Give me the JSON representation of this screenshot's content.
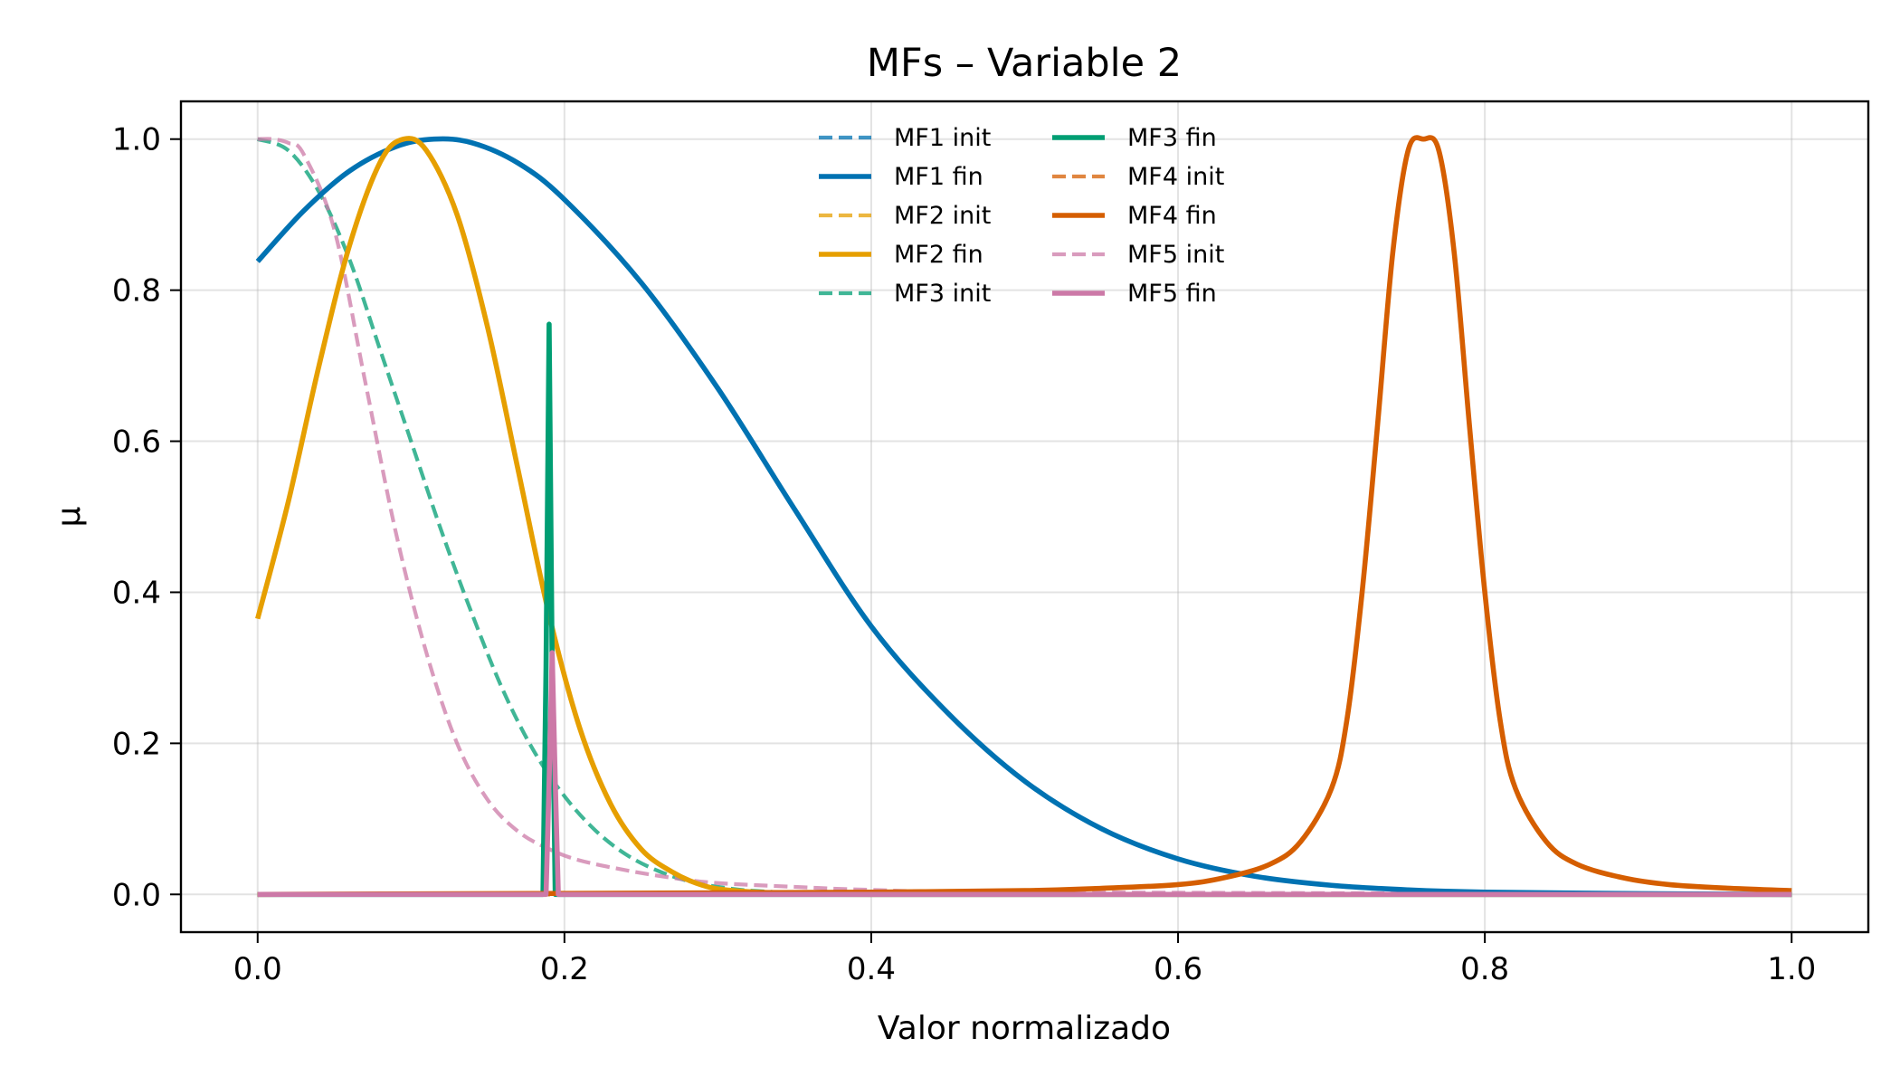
{
  "chart_data": {
    "type": "line",
    "title": "MFs – Variable 2",
    "xlabel": "Valor normalizado",
    "ylabel": "μ",
    "xlim": [
      -0.05,
      1.05
    ],
    "ylim": [
      -0.05,
      1.05
    ],
    "xticks": [
      "0.0",
      "0.2",
      "0.4",
      "0.6",
      "0.8",
      "1.0"
    ],
    "yticks": [
      "0.0",
      "0.2",
      "0.4",
      "0.6",
      "0.8",
      "1.0"
    ],
    "grid": true,
    "legend": {
      "position": "top-center",
      "columns": 2
    },
    "series": [
      {
        "name": "MF1 init",
        "color": "#0072B2",
        "style": "dashed",
        "points": [
          [
            0,
            0
          ],
          [
            1,
            0
          ]
        ]
      },
      {
        "name": "MF1 fin",
        "color": "#0072B2",
        "style": "solid",
        "points": [
          [
            0,
            0.838
          ],
          [
            0.03,
            0.905
          ],
          [
            0.06,
            0.958
          ],
          [
            0.09,
            0.99
          ],
          [
            0.115,
            1.0
          ],
          [
            0.14,
            0.995
          ],
          [
            0.17,
            0.968
          ],
          [
            0.2,
            0.92
          ],
          [
            0.25,
            0.81
          ],
          [
            0.3,
            0.67
          ],
          [
            0.35,
            0.51
          ],
          [
            0.4,
            0.355
          ],
          [
            0.45,
            0.24
          ],
          [
            0.5,
            0.15
          ],
          [
            0.55,
            0.087
          ],
          [
            0.6,
            0.047
          ],
          [
            0.65,
            0.024
          ],
          [
            0.7,
            0.012
          ],
          [
            0.75,
            0.006
          ],
          [
            0.8,
            0.003
          ],
          [
            0.9,
            0.001
          ],
          [
            1.0,
            0.0
          ]
        ]
      },
      {
        "name": "MF2 init",
        "color": "#E69F00",
        "style": "dashed",
        "points": [
          [
            0,
            0
          ],
          [
            1,
            0
          ]
        ]
      },
      {
        "name": "MF2 fin",
        "color": "#E69F00",
        "style": "solid",
        "points": [
          [
            0,
            0.365
          ],
          [
            0.02,
            0.52
          ],
          [
            0.04,
            0.7
          ],
          [
            0.06,
            0.86
          ],
          [
            0.08,
            0.97
          ],
          [
            0.095,
            1.0
          ],
          [
            0.11,
            0.985
          ],
          [
            0.13,
            0.9
          ],
          [
            0.15,
            0.75
          ],
          [
            0.17,
            0.56
          ],
          [
            0.19,
            0.37
          ],
          [
            0.21,
            0.22
          ],
          [
            0.23,
            0.12
          ],
          [
            0.25,
            0.06
          ],
          [
            0.27,
            0.03
          ],
          [
            0.29,
            0.012
          ],
          [
            0.31,
            0.005
          ],
          [
            0.35,
            0.001
          ],
          [
            0.4,
            0.0
          ],
          [
            1.0,
            0.0
          ]
        ]
      },
      {
        "name": "MF3 init",
        "color": "#009E73",
        "style": "dashed",
        "points": [
          [
            0,
            1.0
          ],
          [
            0.02,
            0.985
          ],
          [
            0.04,
            0.93
          ],
          [
            0.06,
            0.84
          ],
          [
            0.08,
            0.72
          ],
          [
            0.1,
            0.6
          ],
          [
            0.12,
            0.48
          ],
          [
            0.14,
            0.37
          ],
          [
            0.16,
            0.27
          ],
          [
            0.18,
            0.19
          ],
          [
            0.2,
            0.13
          ],
          [
            0.22,
            0.085
          ],
          [
            0.24,
            0.053
          ],
          [
            0.26,
            0.032
          ],
          [
            0.28,
            0.018
          ],
          [
            0.3,
            0.01
          ],
          [
            0.33,
            0.004
          ],
          [
            0.4,
            0.001
          ],
          [
            1.0,
            0.0
          ]
        ]
      },
      {
        "name": "MF3 fin",
        "color": "#009E73",
        "style": "solid",
        "points": [
          [
            0,
            0
          ],
          [
            0.186,
            0.0
          ],
          [
            0.188,
            0.3
          ],
          [
            0.19,
            0.755
          ],
          [
            0.192,
            0.3
          ],
          [
            0.194,
            0.0
          ],
          [
            1.0,
            0.0
          ]
        ]
      },
      {
        "name": "MF4 init",
        "color": "#D55E00",
        "style": "dashed",
        "points": [
          [
            0,
            0
          ],
          [
            1,
            0
          ]
        ]
      },
      {
        "name": "MF4 fin",
        "color": "#D55E00",
        "style": "solid",
        "points": [
          [
            0,
            0.0
          ],
          [
            0.3,
            0.002
          ],
          [
            0.4,
            0.003
          ],
          [
            0.5,
            0.005
          ],
          [
            0.55,
            0.008
          ],
          [
            0.6,
            0.013
          ],
          [
            0.63,
            0.022
          ],
          [
            0.66,
            0.04
          ],
          [
            0.68,
            0.07
          ],
          [
            0.7,
            0.14
          ],
          [
            0.71,
            0.23
          ],
          [
            0.72,
            0.4
          ],
          [
            0.73,
            0.62
          ],
          [
            0.74,
            0.85
          ],
          [
            0.75,
            0.985
          ],
          [
            0.76,
            1.0
          ],
          [
            0.77,
            0.985
          ],
          [
            0.78,
            0.85
          ],
          [
            0.79,
            0.62
          ],
          [
            0.8,
            0.4
          ],
          [
            0.81,
            0.23
          ],
          [
            0.82,
            0.14
          ],
          [
            0.84,
            0.07
          ],
          [
            0.86,
            0.04
          ],
          [
            0.89,
            0.022
          ],
          [
            0.92,
            0.013
          ],
          [
            0.96,
            0.008
          ],
          [
            1.0,
            0.005
          ]
        ]
      },
      {
        "name": "MF5 init",
        "color": "#CC79A7",
        "style": "dashed",
        "points": [
          [
            0,
            1.0
          ],
          [
            0.01,
            1.0
          ],
          [
            0.02,
            0.995
          ],
          [
            0.03,
            0.98
          ],
          [
            0.05,
            0.88
          ],
          [
            0.07,
            0.68
          ],
          [
            0.09,
            0.48
          ],
          [
            0.11,
            0.32
          ],
          [
            0.13,
            0.2
          ],
          [
            0.15,
            0.125
          ],
          [
            0.17,
            0.083
          ],
          [
            0.19,
            0.06
          ],
          [
            0.21,
            0.045
          ],
          [
            0.24,
            0.032
          ],
          [
            0.27,
            0.022
          ],
          [
            0.3,
            0.015
          ],
          [
            0.35,
            0.01
          ],
          [
            0.4,
            0.006
          ],
          [
            0.5,
            0.003
          ],
          [
            1.0,
            0.0
          ]
        ]
      },
      {
        "name": "MF5 fin",
        "color": "#CC79A7",
        "style": "solid",
        "points": [
          [
            0,
            0
          ],
          [
            0.188,
            0.0
          ],
          [
            0.19,
            0.15
          ],
          [
            0.192,
            0.32
          ],
          [
            0.194,
            0.15
          ],
          [
            0.196,
            0.0
          ],
          [
            1.0,
            0.0
          ]
        ]
      }
    ]
  }
}
